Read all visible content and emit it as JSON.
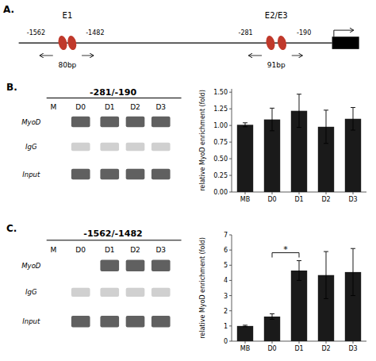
{
  "chart_data": [
    {
      "type": "diagram",
      "color": "#c0392b",
      "annotations": [
        "A.",
        "E1",
        "E2/E3",
        "-1562",
        "-1482",
        "-281",
        "-190",
        "80bp",
        "91bp"
      ]
    },
    {
      "type": "gel",
      "title": "-281/-190",
      "annotations": [
        "B."
      ],
      "categories": [
        "M",
        "D0",
        "D1",
        "D2",
        "D3"
      ],
      "series": [
        {
          "name": "MyoD",
          "color": "#444444",
          "bands": [
            false,
            true,
            true,
            true,
            true
          ]
        },
        {
          "name": "IgG",
          "color": "#aaaaaa",
          "bands": [
            false,
            true,
            true,
            true,
            true
          ]
        },
        {
          "name": "Input",
          "color": "#444444",
          "bands": [
            false,
            true,
            true,
            true,
            true
          ]
        }
      ]
    },
    {
      "type": "bar",
      "categories": [
        "MB",
        "D0",
        "D1",
        "D2",
        "D3"
      ],
      "values": [
        1.01,
        1.09,
        1.22,
        0.98,
        1.1
      ],
      "errors": [
        0.03,
        0.17,
        0.25,
        0.25,
        0.17
      ],
      "ylabel": "relative MyoD enrichment (fold)",
      "color": "#1a1a1a",
      "ylim": [
        0,
        1.55
      ],
      "yticks": [
        {
          "value": 0.0,
          "label": "0.00"
        },
        {
          "value": 0.25,
          "label": "0.25"
        },
        {
          "value": 0.5,
          "label": "0.50"
        },
        {
          "value": 0.75,
          "label": "0.75"
        },
        {
          "value": 1.0,
          "label": "1.00"
        },
        {
          "value": 1.25,
          "label": "1.25"
        },
        {
          "value": 1.5,
          "label": "1.50"
        }
      ]
    },
    {
      "type": "gel",
      "title": "-1562/-1482",
      "annotations": [
        "C."
      ],
      "categories": [
        "M",
        "D0",
        "D1",
        "D2",
        "D3"
      ],
      "series": [
        {
          "name": "MyoD",
          "color": "#444444",
          "bands": [
            false,
            false,
            true,
            true,
            true
          ]
        },
        {
          "name": "IgG",
          "color": "#aaaaaa",
          "bands": [
            false,
            true,
            true,
            true,
            true
          ]
        },
        {
          "name": "Input",
          "color": "#444444",
          "bands": [
            false,
            true,
            true,
            true,
            true
          ]
        }
      ]
    },
    {
      "type": "bar",
      "categories": [
        "MB",
        "D0",
        "D1",
        "D2",
        "D3"
      ],
      "values": [
        1.0,
        1.62,
        4.65,
        4.35,
        4.55
      ],
      "errors": [
        0.05,
        0.18,
        0.65,
        1.55,
        1.55
      ],
      "ylabel": "relative MyoD enrichment (fold)",
      "color": "#1a1a1a",
      "ylim": [
        0,
        7
      ],
      "yticks": [
        0,
        1,
        2,
        3,
        4,
        5,
        6,
        7
      ],
      "significance_bracket": [
        "D0",
        "D1"
      ],
      "annotations": [
        "*"
      ]
    }
  ]
}
